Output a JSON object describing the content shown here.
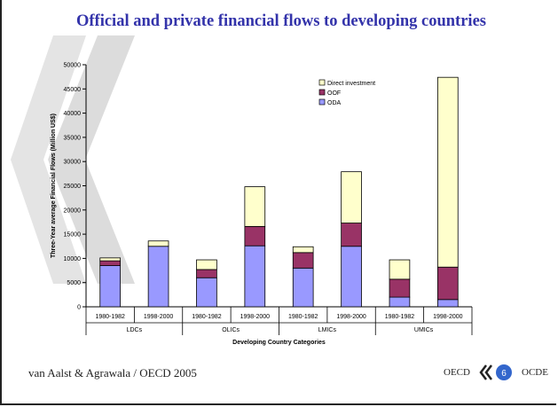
{
  "slide": {
    "title": "Official and private financial flows to developing countries",
    "footer": "van Aalst & Agrawala / OECD 2005",
    "logo_left": "OECD",
    "logo_number": "6",
    "logo_right": "OCDE"
  },
  "colors": {
    "title": "#3333aa",
    "oda": "#9999ff",
    "oof": "#993366",
    "direct_investment": "#ffffcc",
    "watermark": "#dcdcdc",
    "logo_circle": "#3366cc"
  },
  "chart_data": {
    "type": "bar",
    "stacked": true,
    "ylabel": "Three-Year average Financial Flows (Million US$)",
    "xlabel": "Developing Country Categories",
    "ylim": [
      0,
      50000
    ],
    "yticks": [
      0,
      5000,
      10000,
      15000,
      20000,
      25000,
      30000,
      35000,
      40000,
      45000,
      50000
    ],
    "categories": [
      "1980-1982",
      "1998-2000",
      "1980-1982",
      "1998-2000",
      "1980-1982",
      "1998-2000",
      "1980-1982",
      "1998-2000"
    ],
    "groups": [
      "LDCs",
      "OLICs",
      "LMICs",
      "UMICs"
    ],
    "series": [
      {
        "name": "ODA",
        "values": [
          8500,
          12500,
          6000,
          12600,
          8000,
          12500,
          2000,
          1500
        ]
      },
      {
        "name": "OOF",
        "values": [
          1000,
          0,
          1700,
          4000,
          3200,
          4800,
          3700,
          6700
        ]
      },
      {
        "name": "Direct investment",
        "values": [
          600,
          1100,
          2000,
          8200,
          1200,
          10600,
          4000,
          39200
        ]
      }
    ],
    "legend_position": "top-right",
    "legend_order": [
      "Direct investment",
      "OOF",
      "ODA"
    ],
    "grid": false
  }
}
